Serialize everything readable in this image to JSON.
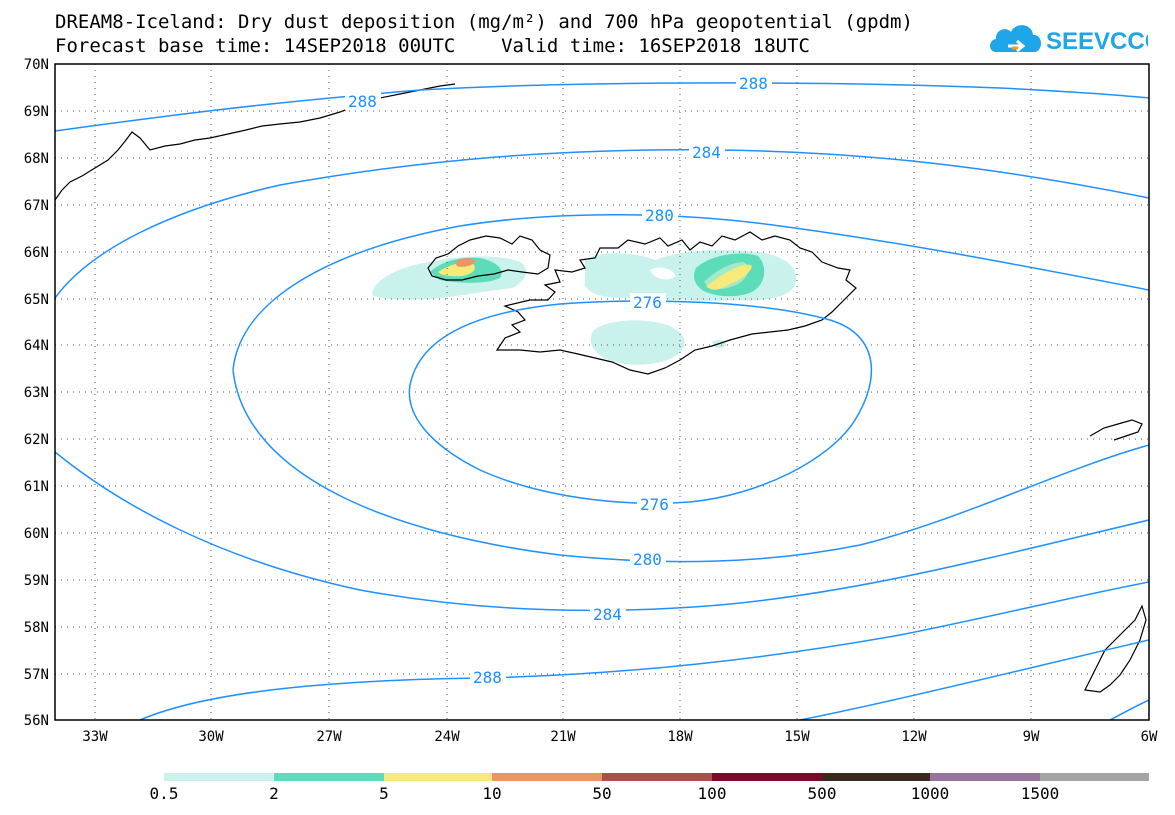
{
  "header": {
    "title_line1": "DREAM8-Iceland: Dry dust deposition (mg/m²) and 700 hPa geopotential (gpdm)",
    "title_line2": "Forecast base time: 14SEP2018 00UTC    Valid time: 16SEP2018 18UTC"
  },
  "logo": {
    "text": "SEEVCCC",
    "color": "#1ea6e8"
  },
  "map": {
    "lat_labels": [
      "70N",
      "69N",
      "68N",
      "67N",
      "66N",
      "65N",
      "64N",
      "63N",
      "62N",
      "61N",
      "60N",
      "59N",
      "58N",
      "57N",
      "56N"
    ],
    "lon_labels": [
      "33W",
      "30W",
      "27W",
      "24W",
      "21W",
      "18W",
      "15W",
      "12W",
      "9W",
      "6W"
    ],
    "contour_color": "#1e90ff",
    "contour_labels": [
      {
        "value": "288",
        "contour": "288-north-west"
      },
      {
        "value": "288",
        "contour": "288-north-east"
      },
      {
        "value": "284",
        "contour": "284-north"
      },
      {
        "value": "280",
        "contour": "280-north"
      },
      {
        "value": "276",
        "contour": "276-north"
      },
      {
        "value": "276",
        "contour": "276-south"
      },
      {
        "value": "280",
        "contour": "280-south"
      },
      {
        "value": "284",
        "contour": "284-south"
      },
      {
        "value": "288",
        "contour": "288-south"
      }
    ]
  },
  "colorbar": {
    "colors": [
      "#c9f2ec",
      "#5cdcb8",
      "#f5ea7a",
      "#eb9466",
      "#a8504a",
      "#7a0a28",
      "#3b2a1c",
      "#98759d",
      "#a4a4a4"
    ],
    "labels": [
      "0.5",
      "2",
      "5",
      "10",
      "50",
      "100",
      "500",
      "1000",
      "1500"
    ]
  }
}
